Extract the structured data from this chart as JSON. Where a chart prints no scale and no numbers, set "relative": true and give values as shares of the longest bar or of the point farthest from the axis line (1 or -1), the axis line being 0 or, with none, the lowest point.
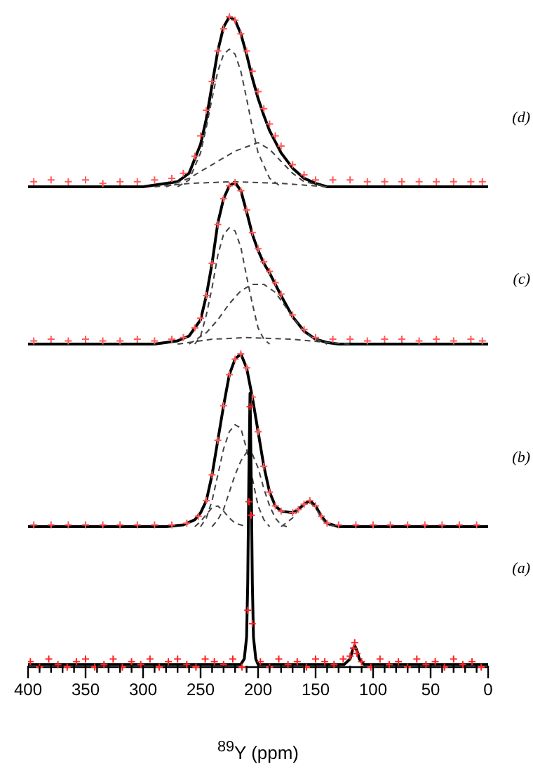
{
  "chart_data": [
    {
      "type": "line",
      "relative": true,
      "xlim": [
        400,
        0
      ],
      "tick_labels": false,
      "annotations": [
        "(d)"
      ],
      "series": [
        {
          "type": "scatter",
          "marker": "cross",
          "color": "#ff5a5a",
          "x": [
            395,
            380,
            365,
            350,
            335,
            320,
            305,
            290,
            275,
            265,
            255,
            250,
            245,
            240,
            235,
            230,
            225,
            220,
            215,
            210,
            205,
            200,
            195,
            190,
            185,
            180,
            170,
            160,
            150,
            135,
            120,
            105,
            90,
            75,
            60,
            45,
            30,
            15,
            5
          ],
          "values": [
            0.03,
            0.04,
            0.03,
            0.04,
            0.02,
            0.03,
            0.03,
            0.04,
            0.05,
            0.08,
            0.18,
            0.3,
            0.45,
            0.62,
            0.8,
            0.93,
            1,
            0.98,
            0.9,
            0.8,
            0.68,
            0.56,
            0.46,
            0.37,
            0.3,
            0.24,
            0.13,
            0.07,
            0.04,
            0.04,
            0.04,
            0.03,
            0.03,
            0.03,
            0.03,
            0.03,
            0.03,
            0.03,
            0.03
          ]
        },
        {
          "color": "#000000",
          "marker": "none",
          "line_style": "solid",
          "x": [
            400,
            300,
            270,
            260,
            250,
            245,
            240,
            235,
            230,
            225,
            220,
            215,
            210,
            205,
            200,
            195,
            190,
            180,
            170,
            160,
            150,
            140,
            0
          ],
          "values": [
            0,
            0,
            0.03,
            0.08,
            0.25,
            0.4,
            0.6,
            0.8,
            0.94,
            1,
            0.98,
            0.9,
            0.78,
            0.64,
            0.52,
            0.42,
            0.33,
            0.2,
            0.11,
            0.05,
            0.02,
            0,
            0
          ]
        },
        {
          "color": "#444444",
          "marker": "none",
          "line_style": "dashed",
          "x": [
            270,
            260,
            250,
            245,
            240,
            235,
            230,
            225,
            220,
            215,
            210,
            205,
            200,
            190,
            180
          ],
          "values": [
            0,
            0.04,
            0.2,
            0.35,
            0.52,
            0.68,
            0.78,
            0.81,
            0.78,
            0.68,
            0.52,
            0.35,
            0.2,
            0.05,
            0
          ]
        },
        {
          "color": "#444444",
          "marker": "none",
          "line_style": "dashed",
          "x": [
            280,
            260,
            240,
            220,
            200,
            190,
            180,
            170,
            160,
            140
          ],
          "values": [
            0,
            0.05,
            0.13,
            0.21,
            0.26,
            0.22,
            0.15,
            0.08,
            0.03,
            0
          ]
        },
        {
          "color": "#444444",
          "marker": "none",
          "line_style": "dashed",
          "x": [
            290,
            260,
            220,
            180,
            140
          ],
          "values": [
            0,
            0.02,
            0.03,
            0.02,
            0
          ]
        }
      ]
    },
    {
      "type": "line",
      "relative": true,
      "xlim": [
        400,
        0
      ],
      "tick_labels": false,
      "annotations": [
        "(c)"
      ],
      "series": [
        {
          "type": "scatter",
          "marker": "cross",
          "color": "#ff5a5a",
          "x": [
            395,
            380,
            365,
            350,
            335,
            320,
            305,
            290,
            275,
            265,
            255,
            250,
            245,
            240,
            235,
            230,
            225,
            220,
            215,
            210,
            205,
            200,
            195,
            190,
            185,
            180,
            170,
            160,
            150,
            135,
            120,
            105,
            90,
            75,
            60,
            45,
            30,
            15,
            5
          ],
          "values": [
            0.02,
            0.03,
            0.02,
            0.03,
            0.02,
            0.02,
            0.03,
            0.02,
            0.03,
            0.04,
            0.1,
            0.16,
            0.3,
            0.5,
            0.74,
            0.9,
            0.98,
            1,
            0.95,
            0.83,
            0.69,
            0.59,
            0.51,
            0.45,
            0.38,
            0.31,
            0.18,
            0.09,
            0.04,
            0.03,
            0.03,
            0.02,
            0.03,
            0.03,
            0.02,
            0.03,
            0.02,
            0.03,
            0.02
          ]
        },
        {
          "color": "#000000",
          "marker": "none",
          "line_style": "solid",
          "x": [
            400,
            290,
            270,
            260,
            250,
            245,
            240,
            235,
            230,
            225,
            220,
            215,
            210,
            205,
            200,
            195,
            190,
            185,
            180,
            170,
            160,
            150,
            140,
            130,
            0
          ],
          "values": [
            0,
            0,
            0.02,
            0.05,
            0.15,
            0.3,
            0.5,
            0.75,
            0.9,
            0.98,
            1,
            0.95,
            0.82,
            0.68,
            0.58,
            0.5,
            0.44,
            0.37,
            0.3,
            0.17,
            0.08,
            0.03,
            0.01,
            0,
            0
          ]
        },
        {
          "color": "#444444",
          "marker": "none",
          "line_style": "dashed",
          "x": [
            255,
            250,
            245,
            240,
            235,
            230,
            225,
            220,
            215,
            210,
            205,
            200,
            195,
            190
          ],
          "values": [
            0,
            0.05,
            0.18,
            0.35,
            0.55,
            0.68,
            0.72,
            0.7,
            0.6,
            0.42,
            0.25,
            0.1,
            0.03,
            0
          ]
        },
        {
          "color": "#444444",
          "marker": "none",
          "line_style": "dashed",
          "x": [
            260,
            245,
            235,
            225,
            215,
            205,
            195,
            185,
            175,
            165,
            155,
            140
          ],
          "values": [
            0,
            0.07,
            0.15,
            0.25,
            0.33,
            0.37,
            0.37,
            0.32,
            0.22,
            0.12,
            0.05,
            0
          ]
        },
        {
          "color": "#444444",
          "marker": "none",
          "line_style": "dashed",
          "x": [
            270,
            240,
            210,
            170,
            140,
            120
          ],
          "values": [
            0,
            0.03,
            0.04,
            0.03,
            0.01,
            0
          ]
        }
      ]
    },
    {
      "type": "line",
      "relative": true,
      "xlim": [
        400,
        0
      ],
      "tick_labels": false,
      "annotations": [
        "(b)"
      ],
      "series": [
        {
          "type": "scatter",
          "marker": "cross",
          "color": "#ff5a5a",
          "x": [
            395,
            380,
            365,
            350,
            335,
            320,
            305,
            290,
            275,
            262,
            252,
            245,
            240,
            235,
            230,
            225,
            220,
            215,
            210,
            205,
            200,
            195,
            190,
            185,
            180,
            170,
            165,
            160,
            155,
            150,
            145,
            140,
            130,
            115,
            100,
            85,
            70,
            55,
            40,
            25,
            10
          ],
          "values": [
            0.01,
            0.01,
            0.01,
            0.01,
            0.01,
            0.01,
            0.01,
            0.01,
            0.01,
            0.02,
            0.06,
            0.15,
            0.3,
            0.5,
            0.7,
            0.88,
            0.97,
            1,
            0.92,
            0.75,
            0.55,
            0.35,
            0.2,
            0.12,
            0.09,
            0.08,
            0.1,
            0.13,
            0.15,
            0.12,
            0.06,
            0.02,
            0.01,
            0.01,
            0.01,
            0.01,
            0.01,
            0.01,
            0.01,
            0.01,
            0.01
          ]
        },
        {
          "color": "#000000",
          "marker": "none",
          "line_style": "solid",
          "x": [
            400,
            280,
            265,
            255,
            250,
            245,
            240,
            235,
            230,
            225,
            220,
            215,
            210,
            205,
            200,
            195,
            190,
            185,
            180,
            170,
            165,
            160,
            155,
            150,
            145,
            140,
            130,
            0
          ],
          "values": [
            0,
            0,
            0.01,
            0.04,
            0.08,
            0.15,
            0.3,
            0.5,
            0.7,
            0.88,
            0.97,
            1,
            0.92,
            0.75,
            0.55,
            0.35,
            0.2,
            0.12,
            0.09,
            0.08,
            0.1,
            0.13,
            0.15,
            0.12,
            0.06,
            0.02,
            0,
            0
          ]
        },
        {
          "color": "#444444",
          "marker": "none",
          "line_style": "dashed",
          "x": [
            250,
            245,
            240,
            235,
            230,
            225,
            220,
            215,
            210,
            205,
            200,
            195,
            190
          ],
          "values": [
            0,
            0.05,
            0.15,
            0.3,
            0.45,
            0.55,
            0.59,
            0.57,
            0.45,
            0.28,
            0.12,
            0.04,
            0
          ]
        },
        {
          "color": "#444444",
          "marker": "none",
          "line_style": "dashed",
          "x": [
            240,
            235,
            230,
            225,
            220,
            215,
            210,
            205,
            200,
            195,
            190,
            185,
            180,
            175
          ],
          "values": [
            0,
            0.04,
            0.1,
            0.2,
            0.3,
            0.38,
            0.43,
            0.42,
            0.34,
            0.22,
            0.12,
            0.05,
            0.01,
            0
          ]
        },
        {
          "color": "#444444",
          "marker": "none",
          "line_style": "dashed",
          "x": [
            255,
            250,
            245,
            240,
            235,
            230,
            225,
            220,
            210
          ],
          "values": [
            0,
            0.03,
            0.07,
            0.11,
            0.12,
            0.09,
            0.05,
            0.02,
            0
          ]
        },
        {
          "color": "#444444",
          "marker": "none",
          "line_style": "dashed",
          "x": [
            180,
            170,
            165,
            160,
            155,
            150,
            145,
            140,
            130
          ],
          "values": [
            0,
            0.05,
            0.1,
            0.13,
            0.14,
            0.11,
            0.05,
            0.01,
            0
          ]
        }
      ]
    },
    {
      "type": "line",
      "relative": true,
      "xlim": [
        400,
        0
      ],
      "xlabel": "$^{89}$Y (ppm)",
      "annotations": [
        "(a)"
      ],
      "xticks": [
        400,
        {
          "value": 390,
          "label": null
        },
        {
          "value": 380,
          "label": null
        },
        {
          "value": 370,
          "label": null
        },
        {
          "value": 360,
          "label": null
        },
        350,
        {
          "value": 340,
          "label": null
        },
        {
          "value": 330,
          "label": null
        },
        {
          "value": 320,
          "label": null
        },
        {
          "value": 310,
          "label": null
        },
        300,
        {
          "value": 290,
          "label": null
        },
        {
          "value": 280,
          "label": null
        },
        {
          "value": 270,
          "label": null
        },
        {
          "value": 260,
          "label": null
        },
        250,
        {
          "value": 240,
          "label": null
        },
        {
          "value": 230,
          "label": null
        },
        {
          "value": 220,
          "label": null
        },
        {
          "value": 210,
          "label": null
        },
        200,
        {
          "value": 190,
          "label": null
        },
        {
          "value": 180,
          "label": null
        },
        {
          "value": 170,
          "label": null
        },
        {
          "value": 160,
          "label": null
        },
        150,
        {
          "value": 140,
          "label": null
        },
        {
          "value": 130,
          "label": null
        },
        {
          "value": 120,
          "label": null
        },
        {
          "value": 110,
          "label": null
        },
        100,
        {
          "value": 90,
          "label": null
        },
        {
          "value": 80,
          "label": null
        },
        {
          "value": 70,
          "label": null
        },
        {
          "value": 60,
          "label": null
        },
        50,
        {
          "value": 40,
          "label": null
        },
        {
          "value": 30,
          "label": null
        },
        {
          "value": 20,
          "label": null
        },
        {
          "value": 10,
          "label": null
        },
        0
      ],
      "series": [
        {
          "type": "scatter",
          "marker": "cross",
          "color": "#ff2020",
          "x": [
            398,
            390,
            382,
            374,
            366,
            358,
            350,
            342,
            334,
            326,
            318,
            310,
            302,
            294,
            286,
            278,
            270,
            262,
            254,
            246,
            238,
            230,
            222,
            214,
            209,
            208,
            207,
            206,
            205,
            198,
            190,
            182,
            174,
            166,
            158,
            150,
            142,
            134,
            126,
            120,
            117,
            116,
            114,
            110,
            102,
            94,
            86,
            78,
            70,
            62,
            54,
            46,
            38,
            30,
            22,
            14,
            6
          ],
          "values": [
            0.01,
            -0.01,
            0.02,
            0,
            -0.01,
            0.01,
            0.02,
            -0.01,
            0,
            0.02,
            -0.01,
            0.01,
            0,
            0.02,
            -0.01,
            0.01,
            0.02,
            0,
            -0.01,
            0.02,
            0.01,
            0,
            0.02,
            -0.01,
            0.2,
            0.6,
            0.95,
            0.55,
            0.15,
            0.01,
            -0.01,
            0.02,
            0,
            0.01,
            -0.01,
            0.02,
            0.01,
            0,
            0.02,
            0.03,
            0.06,
            0.08,
            0.04,
            0.01,
            -0.01,
            0.02,
            0,
            0.01,
            -0.01,
            0.02,
            0,
            0.01,
            -0.01,
            0.02,
            0,
            0.01,
            -0.01
          ]
        },
        {
          "color": "#000000",
          "marker": "none",
          "line_style": "solid",
          "x": [
            400,
            215,
            212,
            210,
            209,
            208,
            207,
            206,
            205,
            204,
            202,
            200,
            125,
            120,
            118,
            116,
            114,
            112,
            108,
            0
          ],
          "values": [
            0,
            0,
            0.02,
            0.1,
            0.3,
            0.7,
            1,
            0.7,
            0.3,
            0.1,
            0.02,
            0,
            0,
            0.02,
            0.05,
            0.07,
            0.05,
            0.02,
            0,
            0
          ]
        }
      ]
    }
  ]
}
